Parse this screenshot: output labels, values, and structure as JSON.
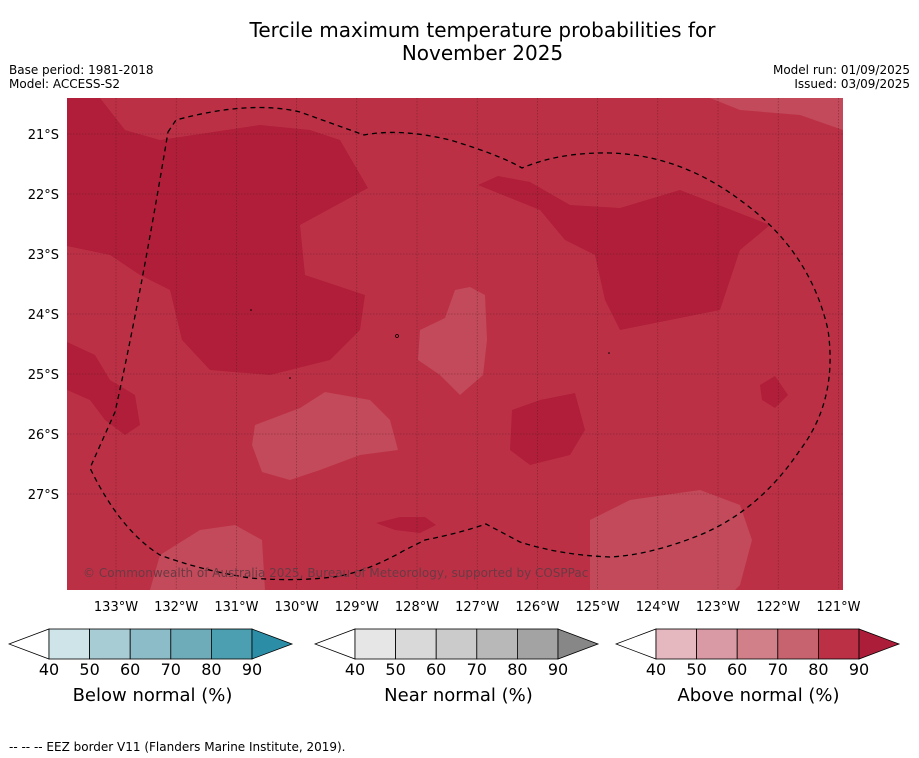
{
  "title_line1": "Tercile maximum temperature probabilities for",
  "title_line2": "November 2025",
  "meta_left": {
    "base_period": "Base period: 1981-2018",
    "model": "Model: ACCESS-S2"
  },
  "meta_right": {
    "model_run": "Model run: 01/09/2025",
    "issued": "Issued: 03/09/2025"
  },
  "map": {
    "lat_labels": [
      "21°S",
      "22°S",
      "23°S",
      "24°S",
      "25°S",
      "26°S",
      "27°S"
    ],
    "lon_labels": [
      "133°W",
      "132°W",
      "131°W",
      "130°W",
      "129°W",
      "128°W",
      "127°W",
      "126°W",
      "125°W",
      "124°W",
      "123°W",
      "122°W",
      "121°W"
    ],
    "copyright": "© Commonwealth of Australia 2025, Bureau of Meteorology, supported by COSPPac",
    "colors": {
      "above_80": "#bc3045",
      "above_90": "#b01e39",
      "above_70": "#c24a5a"
    }
  },
  "colorbars": [
    {
      "label": "Below normal (%)",
      "ticks": [
        "40",
        "50",
        "60",
        "70",
        "80",
        "90"
      ],
      "colors": [
        "#cfe4e9",
        "#a8ccd3",
        "#8bbcc7",
        "#6eacba",
        "#4c9fb0",
        "#2b8ea6"
      ]
    },
    {
      "label": "Near normal (%)",
      "ticks": [
        "40",
        "50",
        "60",
        "70",
        "80",
        "90"
      ],
      "colors": [
        "#e6e6e6",
        "#d9d9d9",
        "#cbcbcb",
        "#b8b8b8",
        "#a3a3a3",
        "#878787"
      ]
    },
    {
      "label": "Above normal (%)",
      "ticks": [
        "40",
        "50",
        "60",
        "70",
        "80",
        "90"
      ],
      "colors": [
        "#e5b8c0",
        "#da9aa5",
        "#d1808a",
        "#c7636f",
        "#bc3045",
        "#ac1d39"
      ]
    }
  ],
  "footnote": "--  --  -- EEZ border V11 (Flanders Marine Institute, 2019)."
}
